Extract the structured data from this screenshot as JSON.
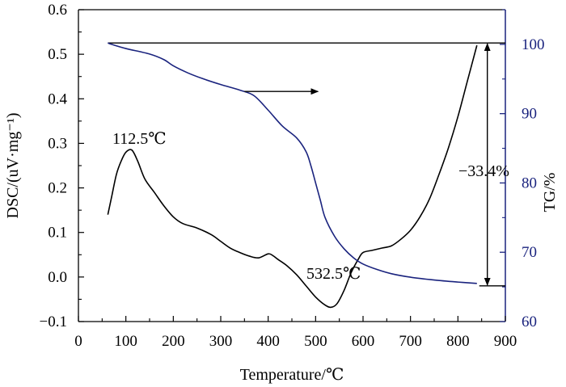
{
  "chart_data": {
    "type": "line",
    "xlabel": "Temperature/℃",
    "ylabel_left": "DSC/(uV·mg⁻¹)",
    "ylabel_right": "TG/%",
    "xlim": [
      0,
      900
    ],
    "ylim_left": [
      -0.1,
      0.6
    ],
    "ylim_right": [
      60,
      105
    ],
    "x_ticks": [
      0,
      100,
      200,
      300,
      400,
      500,
      600,
      700,
      800,
      900
    ],
    "y_left_ticks": [
      -0.1,
      0.0,
      0.1,
      0.2,
      0.3,
      0.4,
      0.5,
      0.6
    ],
    "y_left_tick_labels": [
      "−0.1",
      "0.0",
      "0.1",
      "0.2",
      "0.3",
      "0.4",
      "0.5",
      "0.6"
    ],
    "y_right_ticks": [
      60,
      70,
      80,
      90,
      100
    ],
    "y_right_tick_labels": [
      "60",
      "70",
      "80",
      "90",
      "100"
    ],
    "grid": false,
    "colors": {
      "dsc": "#000000",
      "tg": "#1a237e",
      "right_axis": "#1a237e"
    },
    "series": [
      {
        "axis": "left",
        "x": [
          62,
          70,
          80,
          90,
          100,
          112.5,
          125,
          140,
          160,
          180,
          200,
          220,
          250,
          280,
          300,
          320,
          340,
          360,
          380,
          400,
          410,
          420,
          440,
          460,
          480,
          500,
          520,
          532.5,
          545,
          560,
          575,
          590,
          600,
          620,
          640,
          660,
          680,
          700,
          720,
          740,
          760,
          780,
          800,
          820,
          840
        ],
        "y": [
          0.14,
          0.18,
          0.23,
          0.26,
          0.28,
          0.285,
          0.26,
          0.22,
          0.19,
          0.16,
          0.135,
          0.12,
          0.11,
          0.095,
          0.08,
          0.065,
          0.055,
          0.047,
          0.043,
          0.052,
          0.048,
          0.04,
          0.025,
          0.005,
          -0.02,
          -0.045,
          -0.063,
          -0.068,
          -0.06,
          -0.03,
          0.01,
          0.04,
          0.055,
          0.06,
          0.065,
          0.07,
          0.085,
          0.105,
          0.135,
          0.175,
          0.23,
          0.29,
          0.36,
          0.44,
          0.52
        ]
      },
      {
        "axis": "right",
        "x": [
          62,
          70,
          100,
          150,
          180,
          200,
          230,
          260,
          300,
          340,
          370,
          400,
          430,
          460,
          480,
          490,
          500,
          510,
          520,
          540,
          560,
          580,
          600,
          630,
          660,
          700,
          750,
          800,
          840
        ],
        "y": [
          100.2,
          100.0,
          99.4,
          98.6,
          97.8,
          96.9,
          95.9,
          95.1,
          94.2,
          93.4,
          92.6,
          90.5,
          88.2,
          86.5,
          84.5,
          82.5,
          80.0,
          77.5,
          75.0,
          72.3,
          70.5,
          69.2,
          68.3,
          67.5,
          66.9,
          66.4,
          66.0,
          65.7,
          65.5
        ]
      }
    ],
    "annotations": {
      "peak1": "112.5℃",
      "peak2": "532.5℃",
      "mass_loss": "−33.4%"
    }
  }
}
